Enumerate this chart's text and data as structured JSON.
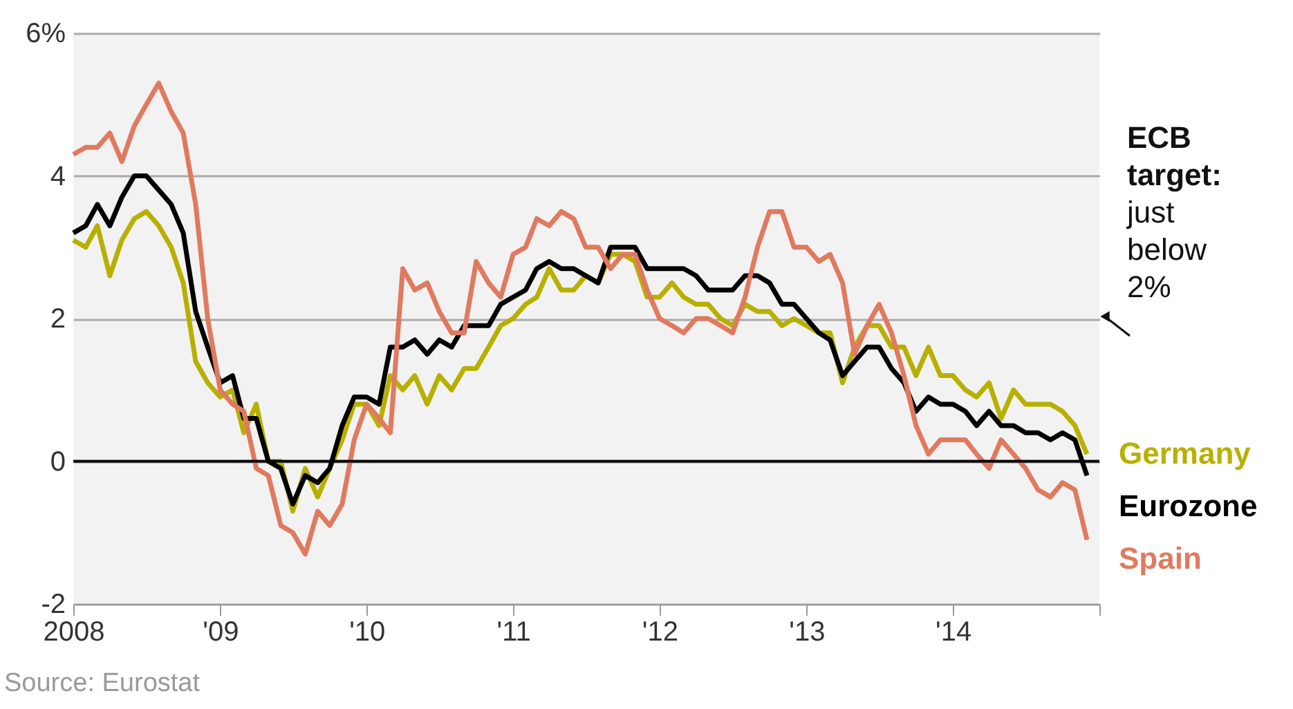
{
  "chart_data": {
    "type": "line",
    "x": [
      "2008-01",
      "2008-02",
      "2008-03",
      "2008-04",
      "2008-05",
      "2008-06",
      "2008-07",
      "2008-08",
      "2008-09",
      "2008-10",
      "2008-11",
      "2008-12",
      "2009-01",
      "2009-02",
      "2009-03",
      "2009-04",
      "2009-05",
      "2009-06",
      "2009-07",
      "2009-08",
      "2009-09",
      "2009-10",
      "2009-11",
      "2009-12",
      "2010-01",
      "2010-02",
      "2010-03",
      "2010-04",
      "2010-05",
      "2010-06",
      "2010-07",
      "2010-08",
      "2010-09",
      "2010-10",
      "2010-11",
      "2010-12",
      "2011-01",
      "2011-02",
      "2011-03",
      "2011-04",
      "2011-05",
      "2011-06",
      "2011-07",
      "2011-08",
      "2011-09",
      "2011-10",
      "2011-11",
      "2011-12",
      "2012-01",
      "2012-02",
      "2012-03",
      "2012-04",
      "2012-05",
      "2012-06",
      "2012-07",
      "2012-08",
      "2012-09",
      "2012-10",
      "2012-11",
      "2012-12",
      "2013-01",
      "2013-02",
      "2013-03",
      "2013-04",
      "2013-05",
      "2013-06",
      "2013-07",
      "2013-08",
      "2013-09",
      "2013-10",
      "2013-11",
      "2013-12",
      "2014-01",
      "2014-02",
      "2014-03",
      "2014-04",
      "2014-05",
      "2014-06",
      "2014-07",
      "2014-08",
      "2014-09",
      "2014-10",
      "2014-11",
      "2014-12"
    ],
    "series": [
      {
        "name": "Germany",
        "color": "#b8b000",
        "values": [
          3.1,
          3.0,
          3.3,
          2.6,
          3.1,
          3.4,
          3.5,
          3.3,
          3.0,
          2.5,
          1.4,
          1.1,
          0.9,
          1.0,
          0.4,
          0.8,
          0.0,
          0.0,
          -0.7,
          -0.1,
          -0.5,
          -0.1,
          0.3,
          0.8,
          0.8,
          0.5,
          1.2,
          1.0,
          1.2,
          0.8,
          1.2,
          1.0,
          1.3,
          1.3,
          1.6,
          1.9,
          2.0,
          2.2,
          2.3,
          2.7,
          2.4,
          2.4,
          2.6,
          2.5,
          2.9,
          2.9,
          2.8,
          2.3,
          2.3,
          2.5,
          2.3,
          2.2,
          2.2,
          2.0,
          1.9,
          2.2,
          2.1,
          2.1,
          1.9,
          2.0,
          1.9,
          1.8,
          1.8,
          1.1,
          1.6,
          1.9,
          1.9,
          1.6,
          1.6,
          1.2,
          1.6,
          1.2,
          1.2,
          1.0,
          0.9,
          1.1,
          0.6,
          1.0,
          0.8,
          0.8,
          0.8,
          0.7,
          0.5,
          0.1
        ]
      },
      {
        "name": "Eurozone",
        "color": "#000000",
        "values": [
          3.2,
          3.3,
          3.6,
          3.3,
          3.7,
          4.0,
          4.0,
          3.8,
          3.6,
          3.2,
          2.1,
          1.6,
          1.1,
          1.2,
          0.6,
          0.6,
          0.0,
          -0.1,
          -0.6,
          -0.2,
          -0.3,
          -0.1,
          0.5,
          0.9,
          0.9,
          0.8,
          1.6,
          1.6,
          1.7,
          1.5,
          1.7,
          1.6,
          1.9,
          1.9,
          1.9,
          2.2,
          2.3,
          2.4,
          2.7,
          2.8,
          2.7,
          2.7,
          2.6,
          2.5,
          3.0,
          3.0,
          3.0,
          2.7,
          2.7,
          2.7,
          2.7,
          2.6,
          2.4,
          2.4,
          2.4,
          2.6,
          2.6,
          2.5,
          2.2,
          2.2,
          2.0,
          1.8,
          1.7,
          1.2,
          1.4,
          1.6,
          1.6,
          1.3,
          1.1,
          0.7,
          0.9,
          0.8,
          0.8,
          0.7,
          0.5,
          0.7,
          0.5,
          0.5,
          0.4,
          0.4,
          0.3,
          0.4,
          0.3,
          -0.2
        ]
      },
      {
        "name": "Spain",
        "color": "#e07a5f",
        "values": [
          4.3,
          4.4,
          4.4,
          4.6,
          4.2,
          4.7,
          5.0,
          5.3,
          4.9,
          4.6,
          3.6,
          2.0,
          1.0,
          0.8,
          0.7,
          -0.1,
          -0.2,
          -0.9,
          -1.0,
          -1.3,
          -0.7,
          -0.9,
          -0.6,
          0.3,
          0.8,
          0.6,
          0.4,
          2.7,
          2.4,
          2.5,
          2.1,
          1.8,
          1.8,
          2.8,
          2.5,
          2.3,
          2.9,
          3.0,
          3.4,
          3.3,
          3.5,
          3.4,
          3.0,
          3.0,
          2.7,
          2.9,
          2.9,
          2.4,
          2.0,
          1.9,
          1.8,
          2.0,
          2.0,
          1.9,
          1.8,
          2.3,
          3.0,
          3.5,
          3.5,
          3.0,
          3.0,
          2.8,
          2.9,
          2.5,
          1.5,
          1.9,
          2.2,
          1.8,
          1.2,
          0.5,
          0.1,
          0.3,
          0.3,
          0.3,
          0.1,
          -0.1,
          0.3,
          0.1,
          -0.1,
          -0.4,
          -0.5,
          -0.3,
          -0.4,
          -1.1
        ]
      }
    ],
    "xlim": [
      "2008-01",
      "2015-01"
    ],
    "xticks": [
      {
        "value": "2008",
        "label": "2008"
      },
      {
        "value": "2009",
        "label": "'09"
      },
      {
        "value": "2010",
        "label": "'10"
      },
      {
        "value": "2011",
        "label": "'11"
      },
      {
        "value": "2012",
        "label": "'12"
      },
      {
        "value": "2013",
        "label": "'13"
      },
      {
        "value": "2014",
        "label": "'14"
      },
      {
        "value": "2015",
        "label": null
      }
    ],
    "ylim": [
      -2,
      6
    ],
    "yticks": [
      -2,
      0,
      2,
      4,
      {
        "value": 6,
        "label": "6%"
      }
    ],
    "grid": "y",
    "ref_lines": [
      {
        "axis": "y",
        "value": 0,
        "color": "#000000"
      }
    ],
    "annotations": [
      "ECB target: just below 2%",
      "Source: Eurostat"
    ],
    "line_style": "solid",
    "marker": "none"
  }
}
